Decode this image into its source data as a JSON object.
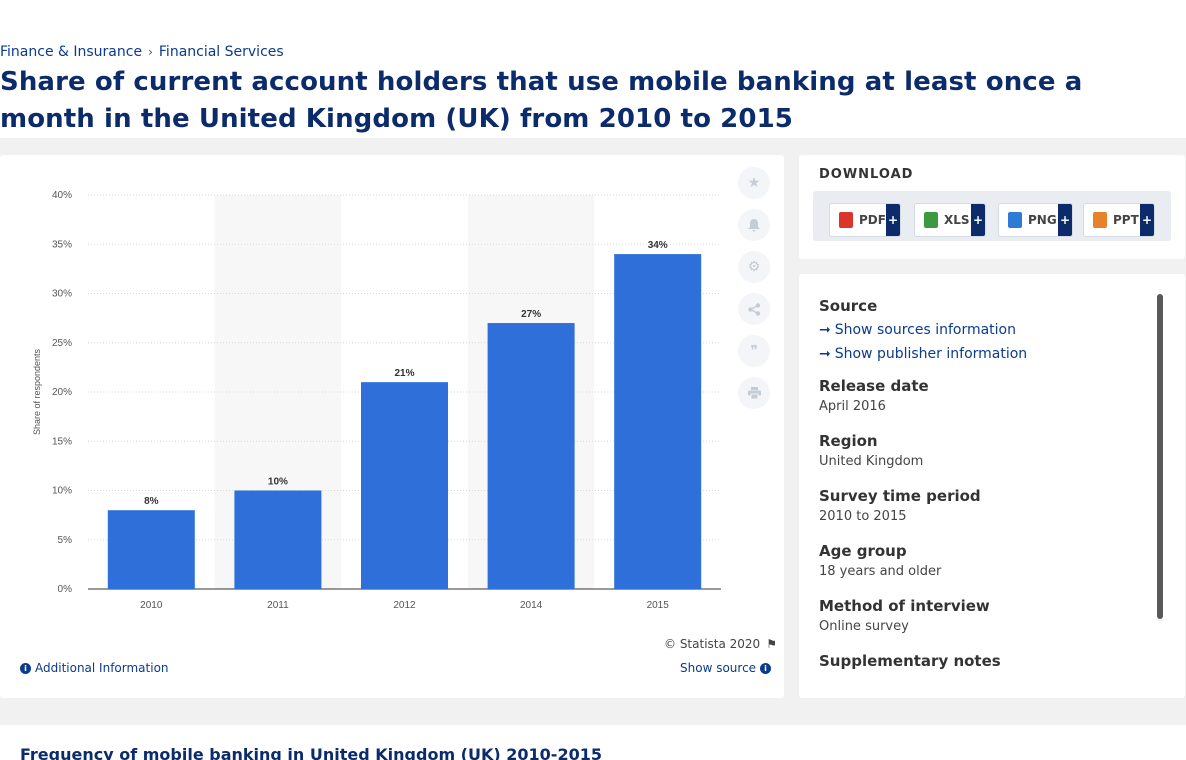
{
  "breadcrumb": {
    "item1": "Finance & Insurance",
    "item2": "Financial Services",
    "separator": "›"
  },
  "page_title": "Share of current account holders that use mobile banking at least once a month in the United Kingdom (UK) from 2010 to 2015",
  "chart_data": {
    "type": "bar",
    "categories": [
      "2010",
      "2011",
      "2012",
      "2014",
      "2015"
    ],
    "values": [
      8,
      10,
      21,
      27,
      34
    ],
    "data_labels": [
      "8%",
      "10%",
      "21%",
      "27%",
      "34%"
    ],
    "ylabel": "Share of respondents",
    "xlabel": "",
    "ylim": [
      0,
      40
    ],
    "yticks": [
      "0%",
      "5%",
      "10%",
      "15%",
      "20%",
      "25%",
      "30%",
      "35%",
      "40%"
    ],
    "bar_color": "#2e6fd9",
    "grid": true
  },
  "chart_footer": {
    "copyright": "© Statista 2020",
    "additional_info": "Additional Information",
    "show_source": "Show source"
  },
  "tools": [
    "star-icon",
    "bell-icon",
    "gear-icon",
    "share-icon",
    "quote-icon",
    "print-icon"
  ],
  "download": {
    "title": "DOWNLOAD",
    "buttons": [
      {
        "label": "PDF",
        "color": "#d9352b"
      },
      {
        "label": "XLS",
        "color": "#3b9a3f"
      },
      {
        "label": "PNG",
        "color": "#2e7bd6"
      },
      {
        "label": "PPT",
        "color": "#e5822a"
      }
    ],
    "plus": "+"
  },
  "source": {
    "source_label": "Source",
    "show_sources": "Show sources information",
    "show_publisher": "Show publisher information",
    "release_label": "Release date",
    "release_value": "April 2016",
    "region_label": "Region",
    "region_value": "United Kingdom",
    "period_label": "Survey time period",
    "period_value": "2010 to 2015",
    "age_label": "Age group",
    "age_value": "18 years and older",
    "method_label": "Method of interview",
    "method_value": "Online survey",
    "notes_label": "Supplementary notes"
  },
  "bottom": {
    "title": "Frequency of mobile banking in United Kingdom (UK) 2010-2015"
  },
  "colors": {
    "brand": "#0b2b6b",
    "link": "#0b3b8c",
    "bar": "#2e6fd9"
  }
}
